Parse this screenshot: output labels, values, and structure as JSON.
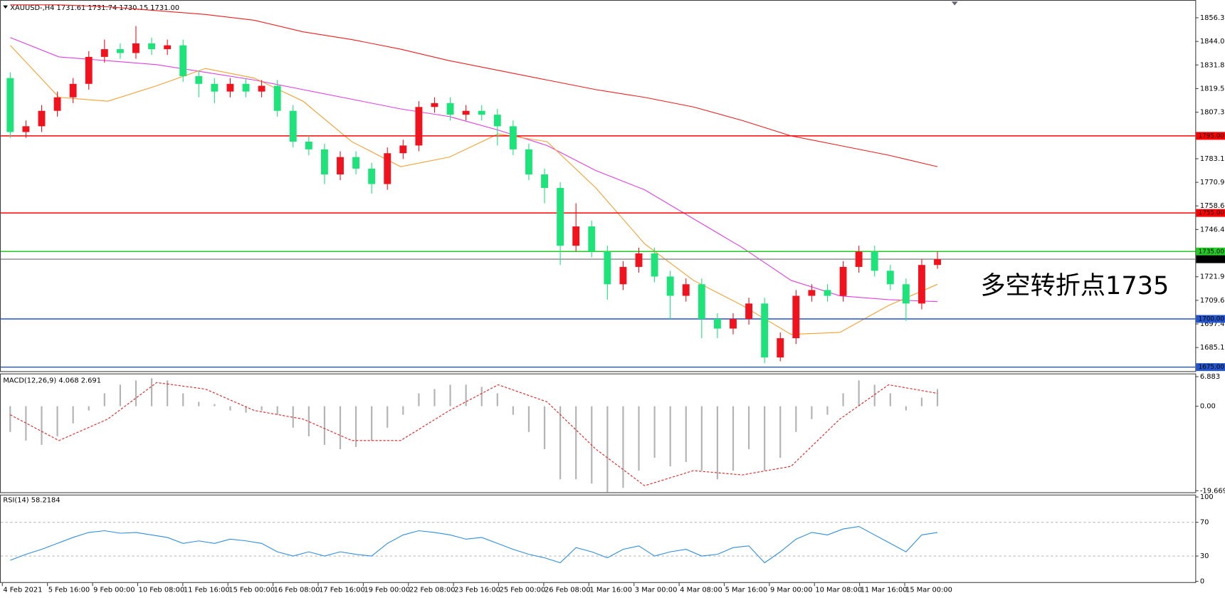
{
  "chart_data": [
    {
      "type": "candlestick",
      "title": "XAUUSD-,H4  1731.61 1731.74 1730.15 1731.00",
      "x_labels": [
        "4 Feb 2021",
        "5 Feb 16:00",
        "9 Feb 00:00",
        "10 Feb 08:00",
        "11 Feb 16:00",
        "15 Feb 00:00",
        "16 Feb 08:00",
        "17 Feb 16:00",
        "19 Feb 00:00",
        "22 Feb 08:00",
        "23 Feb 16:00",
        "25 Feb 00:00",
        "26 Feb 08:00",
        "1 Mar 16:00",
        "3 Mar 00:00",
        "4 Mar 08:00",
        "5 Mar 16:00",
        "9 Mar 00:00",
        "10 Mar 08:00",
        "11 Mar 16:00",
        "15 Mar 00:00"
      ],
      "open": [
        1825,
        1797,
        1800,
        1808,
        1815,
        1822,
        1836,
        1840,
        1838,
        1843,
        1840,
        1842,
        1826,
        1822,
        1818,
        1822,
        1818,
        1821,
        1808,
        1792,
        1788,
        1775,
        1784,
        1778,
        1770,
        1786,
        1790,
        1810,
        1812,
        1806,
        1808,
        1806,
        1800,
        1788,
        1775,
        1768,
        1738,
        1748,
        1735,
        1718,
        1727,
        1734,
        1722,
        1712,
        1718,
        1700,
        1695,
        1700,
        1708,
        1680,
        1690,
        1712,
        1715,
        1712,
        1727,
        1735,
        1725,
        1718,
        1708,
        1728
      ],
      "high": [
        1828,
        1803,
        1811,
        1818,
        1825,
        1839,
        1845,
        1843,
        1852,
        1846,
        1845,
        1845,
        1829,
        1825,
        1825,
        1825,
        1824,
        1824,
        1811,
        1795,
        1791,
        1787,
        1787,
        1781,
        1789,
        1793,
        1813,
        1815,
        1815,
        1811,
        1811,
        1809,
        1803,
        1791,
        1778,
        1771,
        1760,
        1751,
        1738,
        1730,
        1737,
        1737,
        1725,
        1721,
        1721,
        1703,
        1703,
        1711,
        1711,
        1693,
        1715,
        1718,
        1718,
        1730,
        1738,
        1738,
        1728,
        1721,
        1731,
        1735
      ],
      "low": [
        1794,
        1794,
        1797,
        1805,
        1812,
        1819,
        1833,
        1835,
        1835,
        1837,
        1837,
        1823,
        1815,
        1812,
        1815,
        1815,
        1815,
        1805,
        1789,
        1785,
        1770,
        1772,
        1775,
        1765,
        1767,
        1783,
        1787,
        1807,
        1803,
        1803,
        1803,
        1790,
        1785,
        1772,
        1760,
        1728,
        1735,
        1732,
        1710,
        1715,
        1724,
        1719,
        1700,
        1709,
        1690,
        1690,
        1692,
        1697,
        1677,
        1678,
        1687,
        1709,
        1709,
        1709,
        1724,
        1722,
        1715,
        1699,
        1705,
        1726
      ],
      "close": [
        1797,
        1800,
        1808,
        1815,
        1822,
        1836,
        1840,
        1838,
        1843,
        1840,
        1842,
        1826,
        1822,
        1818,
        1822,
        1818,
        1821,
        1808,
        1792,
        1788,
        1775,
        1784,
        1778,
        1770,
        1786,
        1790,
        1810,
        1812,
        1806,
        1808,
        1806,
        1800,
        1788,
        1775,
        1768,
        1738,
        1748,
        1735,
        1718,
        1727,
        1734,
        1722,
        1712,
        1718,
        1700,
        1695,
        1700,
        1708,
        1680,
        1690,
        1712,
        1715,
        1712,
        1727,
        1735,
        1725,
        1718,
        1708,
        1728,
        1731
      ],
      "up_color": "#f0131e",
      "down_color": "#1de37a",
      "moving_averages": [
        {
          "color": "#f01e1e",
          "values": [
            1863,
            1863,
            1862,
            1860,
            1858,
            1855,
            1849,
            1845,
            1840,
            1834,
            1829,
            1824,
            1819,
            1815,
            1810,
            1803,
            1795,
            1790,
            1785,
            1779
          ]
        },
        {
          "color": "#e040e0",
          "values": [
            1846,
            1836,
            1834,
            1832,
            1828,
            1824,
            1819,
            1814,
            1809,
            1805,
            1798,
            1790,
            1777,
            1767,
            1752,
            1737,
            1720,
            1712,
            1710,
            1709
          ]
        },
        {
          "color": "#f5a030",
          "values": [
            1842,
            1815,
            1813,
            1821,
            1830,
            1825,
            1813,
            1792,
            1779,
            1784,
            1796,
            1792,
            1768,
            1739,
            1720,
            1707,
            1692,
            1693,
            1707,
            1718
          ]
        }
      ],
      "levels": [
        {
          "value": 1795,
          "label": "1795.00",
          "color": "#ff0000"
        },
        {
          "value": 1755,
          "label": "1755.00",
          "color": "#ff0000"
        },
        {
          "value": 1735,
          "label": "1735.00",
          "color": "#22cc22"
        },
        {
          "value": 1731,
          "label": "1731.00",
          "color": "#888888"
        },
        {
          "value": 1700,
          "label": "1700.00",
          "color": "#2255cc"
        },
        {
          "value": 1675,
          "label": "1675.00",
          "color": "#2255cc"
        }
      ],
      "ylim": [
        1673.3,
        1864.3
      ],
      "yticks": [
        {
          "value": 1856.3,
          "label": "1856.30"
        },
        {
          "value": 1844,
          "label": "1844.00"
        },
        {
          "value": 1831.8,
          "label": "1831.80"
        },
        {
          "value": 1819.55,
          "label": "1819.55"
        },
        {
          "value": 1807.3,
          "label": "1807.30"
        },
        {
          "value": 1783.15,
          "label": "1783.15"
        },
        {
          "value": 1770.9,
          "label": "1770.90"
        },
        {
          "value": 1758.65,
          "label": "1758.65"
        },
        {
          "value": 1746.4,
          "label": "1746.40"
        },
        {
          "value": 1721.9,
          "label": "1721.90"
        },
        {
          "value": 1709.65,
          "label": "1709.65"
        },
        {
          "value": 1697.4,
          "label": "1697.40"
        },
        {
          "value": 1685.15,
          "label": "1685.15"
        }
      ],
      "annotation": {
        "text": "多空转折点1735",
        "color": "#e8232a"
      }
    },
    {
      "type": "macd",
      "title": "MACD(12,26,9) 4.068 2.691",
      "histogram": [
        -6,
        -8,
        -9,
        -7,
        -4,
        -1,
        3,
        5,
        6,
        6.5,
        6,
        3,
        1,
        0.5,
        -1,
        -1.5,
        -1,
        -2,
        -5,
        -7,
        -9,
        -10,
        -9.5,
        -8,
        -5,
        -2,
        3,
        4,
        5,
        5,
        4.5,
        3,
        -2,
        -6,
        -10,
        -17,
        -17,
        -18,
        -20,
        -19,
        -15,
        -12,
        -14,
        -13,
        -15,
        -17,
        -15,
        -10,
        -15,
        -12,
        -6,
        -3,
        -2,
        3,
        6,
        5,
        3,
        -1,
        2,
        4
      ],
      "signal": [
        -2,
        -8,
        -3,
        5.5,
        4,
        -1,
        -3,
        -8,
        -8,
        -1,
        5,
        1,
        -10,
        -18.5,
        -15,
        -16,
        -14,
        -3,
        5,
        3
      ],
      "hist_color": "#b4b4b4",
      "signal_color": "#e02020",
      "ylim": [
        -19.669,
        6.883
      ],
      "yticks": [
        6.883,
        {
          "value": 0,
          "label": "0.00"
        },
        -19.669
      ]
    },
    {
      "type": "line",
      "title": "RSI(14) 58.2184",
      "values": [
        25,
        32,
        38,
        45,
        52,
        58,
        60,
        57,
        58,
        55,
        52,
        45,
        48,
        45,
        50,
        48,
        45,
        35,
        30,
        35,
        30,
        35,
        32,
        30,
        45,
        55,
        60,
        58,
        55,
        50,
        52,
        45,
        38,
        32,
        28,
        22,
        40,
        35,
        28,
        38,
        42,
        30,
        35,
        38,
        30,
        32,
        40,
        42,
        22,
        35,
        50,
        58,
        55,
        62,
        65,
        55,
        45,
        35,
        55,
        58
      ],
      "color": "#2e8ee0",
      "ylim": [
        0,
        100
      ],
      "yticks": [
        100,
        70,
        30,
        0
      ]
    }
  ]
}
